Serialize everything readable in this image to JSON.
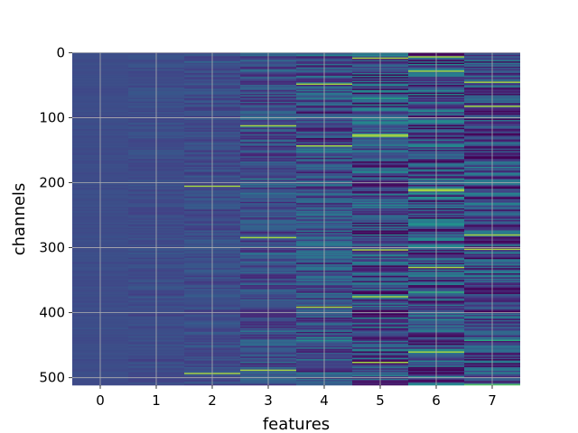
{
  "chart_data": {
    "type": "heatmap",
    "title": "",
    "xlabel": "features",
    "ylabel": "channels",
    "x": [
      "0",
      "1",
      "2",
      "3",
      "4",
      "5",
      "6",
      "7"
    ],
    "y_range": [
      0,
      511
    ],
    "xlim": [
      -0.5,
      7.5
    ],
    "ylim": [
      511.5,
      -0.5
    ],
    "y_ticks": [
      "0",
      "100",
      "200",
      "300",
      "400",
      "500"
    ],
    "grid": true,
    "colormap": "viridis",
    "base_color": "#3b528b",
    "column_variation": [
      0.02,
      0.05,
      0.08,
      0.17,
      0.22,
      0.3,
      0.32,
      0.28
    ],
    "bright_rows": [
      {
        "feature": 2,
        "channels": [
          205,
          493
        ]
      },
      {
        "feature": 3,
        "channels": [
          112,
          284,
          488
        ]
      },
      {
        "feature": 4,
        "channels": [
          48,
          143,
          391
        ]
      },
      {
        "feature": 5,
        "channels": [
          8,
          126,
          128,
          303,
          375,
          476
        ]
      },
      {
        "feature": 6,
        "channels": [
          6,
          28,
          210,
          212,
          330,
          460
        ]
      },
      {
        "feature": 7,
        "channels": [
          45,
          82,
          280,
          302
        ]
      }
    ]
  }
}
